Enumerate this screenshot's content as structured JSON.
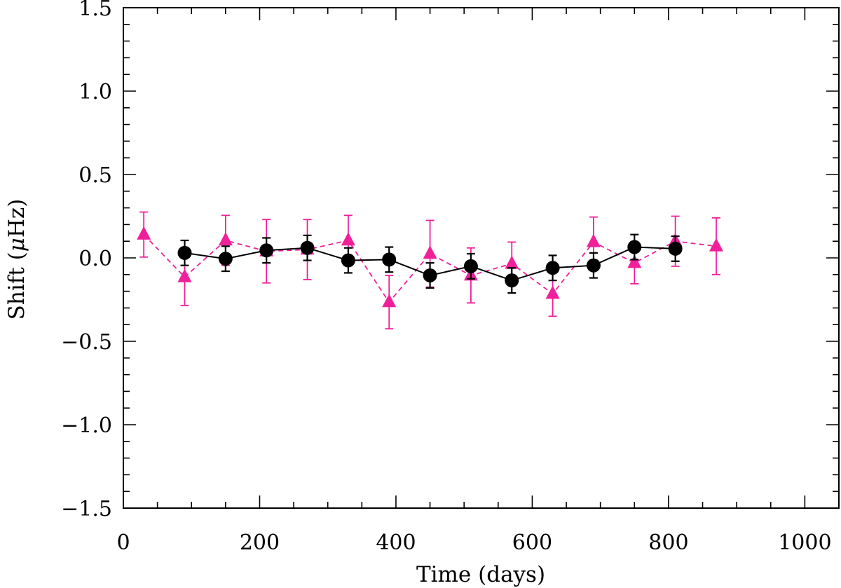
{
  "chart_data": {
    "type": "scatter",
    "xlabel": "Time (days)",
    "ylabel_prefix": "Shift (",
    "ylabel_mu": "μ",
    "ylabel_suffix": "Hz)",
    "xlim": [
      0,
      1050
    ],
    "ylim": [
      -1.5,
      1.5
    ],
    "x_major_ticks": [
      0,
      200,
      400,
      600,
      800,
      1000
    ],
    "x_tick_labels": [
      "0",
      "200",
      "400",
      "600",
      "800",
      "1000"
    ],
    "x_minor_step": 50,
    "y_major_ticks": [
      -1.5,
      -1.0,
      -0.5,
      0.0,
      0.5,
      1.0,
      1.5
    ],
    "y_tick_labels": [
      "−1.5",
      "−1.0",
      "−0.5",
      "0.0",
      "0.5",
      "1.0",
      "1.5"
    ],
    "y_minor_step": 0.1,
    "grid": false,
    "series": [
      {
        "marker": "circle",
        "color": "#000000",
        "line": "solid",
        "x": [
          90,
          150,
          210,
          270,
          330,
          390,
          450,
          510,
          570,
          630,
          690,
          750,
          810
        ],
        "y": [
          0.03,
          -0.005,
          0.045,
          0.06,
          -0.015,
          -0.01,
          -0.105,
          -0.05,
          -0.135,
          -0.06,
          -0.045,
          0.065,
          0.055
        ],
        "err": [
          0.075,
          0.075,
          0.075,
          0.075,
          0.075,
          0.075,
          0.075,
          0.075,
          0.075,
          0.075,
          0.075,
          0.075,
          0.075
        ]
      },
      {
        "marker": "triangle",
        "color": "#f0209a",
        "line": "dashed",
        "x": [
          30,
          90,
          150,
          210,
          270,
          330,
          390,
          450,
          510,
          570,
          630,
          690,
          750,
          810,
          870
        ],
        "y": [
          0.14,
          -0.115,
          0.105,
          0.04,
          0.05,
          0.105,
          -0.265,
          0.025,
          -0.105,
          -0.035,
          -0.215,
          0.095,
          -0.03,
          0.1,
          0.07
        ],
        "err": [
          0.135,
          0.17,
          0.15,
          0.19,
          0.18,
          0.15,
          0.16,
          0.2,
          0.165,
          0.13,
          0.135,
          0.15,
          0.125,
          0.15,
          0.17
        ]
      }
    ]
  }
}
